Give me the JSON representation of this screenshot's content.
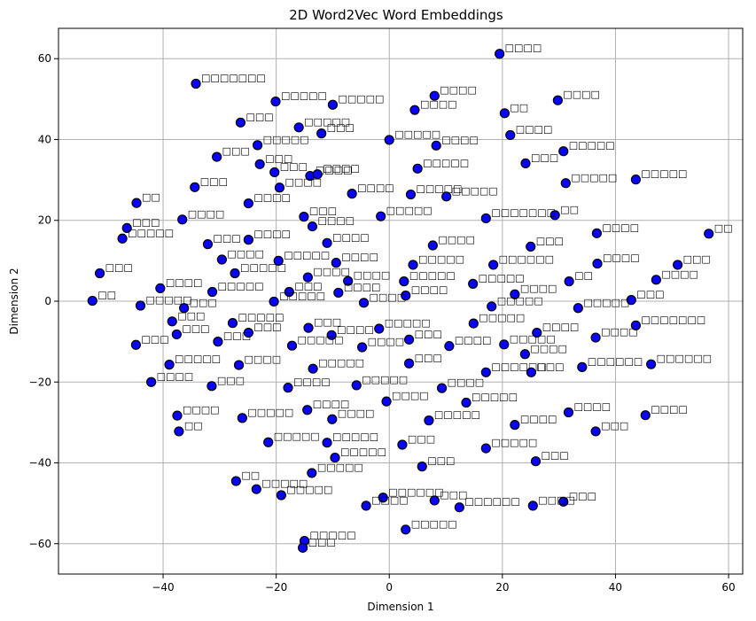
{
  "chart_data": {
    "type": "scatter",
    "title": "2D Word2Vec Word Embeddings",
    "xlabel": "Dimension 1",
    "ylabel": "Dimension 2",
    "xlim": [
      -58.5,
      62.5
    ],
    "ylim": [
      -67.5,
      67.5
    ],
    "xticks": [
      -40,
      -20,
      0,
      20,
      40,
      60
    ],
    "yticks": [
      -60,
      -40,
      -20,
      0,
      20,
      40,
      60
    ],
    "grid": true,
    "marker_color": "#0a00ff",
    "marker_edge_color": "#000000",
    "point_label_glyph": "□",
    "points": [
      [
        19.5,
        61.2,
        4
      ],
      [
        -34.2,
        53.8,
        7
      ],
      [
        8.0,
        50.8,
        4
      ],
      [
        29.8,
        49.7,
        4
      ],
      [
        -20.1,
        49.4,
        5
      ],
      [
        -10.0,
        48.6,
        5
      ],
      [
        4.5,
        47.3,
        4
      ],
      [
        20.4,
        46.5,
        2
      ],
      [
        -26.3,
        44.2,
        3
      ],
      [
        -16.0,
        43.0,
        5
      ],
      [
        -12.0,
        41.5,
        3
      ],
      [
        21.4,
        41.1,
        4
      ],
      [
        0.0,
        39.9,
        5
      ],
      [
        8.3,
        38.5,
        4
      ],
      [
        -23.3,
        38.6,
        5
      ],
      [
        30.8,
        37.1,
        5
      ],
      [
        -30.5,
        35.7,
        3
      ],
      [
        -22.9,
        33.9,
        3
      ],
      [
        24.1,
        34.1,
        3
      ],
      [
        5.0,
        32.8,
        5
      ],
      [
        -20.3,
        31.9,
        3
      ],
      [
        -14.0,
        31.0,
        4
      ],
      [
        -12.7,
        31.4,
        4
      ],
      [
        43.6,
        30.1,
        5
      ],
      [
        31.2,
        29.2,
        5
      ],
      [
        -34.4,
        28.2,
        3
      ],
      [
        -19.4,
        28.1,
        4
      ],
      [
        -6.6,
        26.6,
        4
      ],
      [
        3.8,
        26.4,
        5
      ],
      [
        10.1,
        25.9,
        5
      ],
      [
        -44.7,
        24.3,
        2
      ],
      [
        -24.9,
        24.2,
        4
      ],
      [
        29.3,
        21.3,
        2
      ],
      [
        -36.6,
        20.2,
        4
      ],
      [
        -15.1,
        20.9,
        3
      ],
      [
        -1.5,
        21.0,
        5
      ],
      [
        17.1,
        20.5,
        7
      ],
      [
        -46.4,
        18.1,
        3
      ],
      [
        -13.6,
        18.5,
        4
      ],
      [
        56.5,
        16.7,
        2
      ],
      [
        -47.2,
        15.5,
        5
      ],
      [
        -24.9,
        15.2,
        4
      ],
      [
        -11.0,
        14.4,
        4
      ],
      [
        7.7,
        13.8,
        4
      ],
      [
        25.0,
        13.5,
        3
      ],
      [
        36.7,
        16.8,
        4
      ],
      [
        -32.1,
        14.1,
        3
      ],
      [
        -29.6,
        10.3,
        4
      ],
      [
        -19.6,
        10.0,
        5
      ],
      [
        -9.4,
        9.5,
        4
      ],
      [
        4.2,
        9.0,
        5
      ],
      [
        18.4,
        9.0,
        6
      ],
      [
        36.8,
        9.3,
        4
      ],
      [
        51.0,
        9.0,
        3
      ],
      [
        -51.2,
        6.9,
        3
      ],
      [
        -27.3,
        6.9,
        5
      ],
      [
        -14.4,
        5.9,
        4
      ],
      [
        -7.3,
        5.0,
        4
      ],
      [
        2.6,
        4.9,
        5
      ],
      [
        14.8,
        4.3,
        5
      ],
      [
        31.8,
        4.9,
        2
      ],
      [
        47.2,
        5.3,
        4
      ],
      [
        -40.5,
        3.2,
        4
      ],
      [
        -31.3,
        2.3,
        5
      ],
      [
        -17.7,
        2.3,
        3
      ],
      [
        -9.0,
        2.1,
        4
      ],
      [
        2.9,
        1.4,
        4
      ],
      [
        22.2,
        1.7,
        4
      ],
      [
        42.8,
        0.3,
        3
      ],
      [
        -52.5,
        0.1,
        2
      ],
      [
        -44.0,
        -1.1,
        5
      ],
      [
        -36.3,
        -1.7,
        3
      ],
      [
        -20.4,
        -0.1,
        5
      ],
      [
        -4.5,
        -0.4,
        4
      ],
      [
        18.1,
        -1.3,
        5
      ],
      [
        33.4,
        -1.7,
        5
      ],
      [
        -38.4,
        -5.0,
        3
      ],
      [
        -27.7,
        -5.4,
        5
      ],
      [
        -14.3,
        -6.6,
        3
      ],
      [
        -1.8,
        -6.8,
        5
      ],
      [
        14.9,
        -5.5,
        5
      ],
      [
        26.1,
        -7.8,
        4
      ],
      [
        43.6,
        -6.0,
        7
      ],
      [
        -37.6,
        -8.2,
        3
      ],
      [
        -24.9,
        -7.8,
        3
      ],
      [
        -10.2,
        -8.4,
        4
      ],
      [
        3.5,
        -9.5,
        3
      ],
      [
        20.3,
        -10.7,
        5
      ],
      [
        36.5,
        -9.0,
        4
      ],
      [
        -44.8,
        -10.8,
        3
      ],
      [
        -30.3,
        -10.0,
        3
      ],
      [
        -17.2,
        -11.0,
        5
      ],
      [
        -4.8,
        -11.4,
        4
      ],
      [
        10.6,
        -11.1,
        4
      ],
      [
        24.0,
        -13.1,
        4
      ],
      [
        -38.9,
        -15.7,
        5
      ],
      [
        -26.6,
        -15.8,
        4
      ],
      [
        -13.5,
        -16.7,
        5
      ],
      [
        3.5,
        -15.4,
        3
      ],
      [
        17.1,
        -17.6,
        6
      ],
      [
        34.1,
        -16.3,
        6
      ],
      [
        46.3,
        -15.6,
        6
      ],
      [
        -42.1,
        -20.0,
        4
      ],
      [
        -31.4,
        -21.0,
        3
      ],
      [
        -17.9,
        -21.4,
        4
      ],
      [
        -5.8,
        -20.8,
        5
      ],
      [
        9.3,
        -21.5,
        4
      ],
      [
        25.1,
        -17.6,
        3
      ],
      [
        -14.5,
        -26.9,
        4
      ],
      [
        -0.5,
        -24.8,
        4
      ],
      [
        13.6,
        -25.1,
        5
      ],
      [
        31.7,
        -27.5,
        4
      ],
      [
        45.3,
        -28.2,
        4
      ],
      [
        -37.5,
        -28.3,
        4
      ],
      [
        -26.0,
        -28.9,
        5
      ],
      [
        -10.1,
        -29.2,
        4
      ],
      [
        7.0,
        -29.5,
        5
      ],
      [
        22.2,
        -30.6,
        4
      ],
      [
        36.5,
        -32.2,
        3
      ],
      [
        -37.2,
        -32.2,
        2
      ],
      [
        -21.4,
        -34.9,
        5
      ],
      [
        -11.0,
        -35.0,
        5
      ],
      [
        2.3,
        -35.5,
        3
      ],
      [
        17.1,
        -36.4,
        5
      ],
      [
        25.9,
        -39.6,
        3
      ],
      [
        -9.6,
        -38.7,
        5
      ],
      [
        5.8,
        -40.9,
        3
      ],
      [
        -27.1,
        -44.5,
        2
      ],
      [
        -13.7,
        -42.5,
        5
      ],
      [
        -19.1,
        -48.0,
        5
      ],
      [
        -1.1,
        -48.6,
        6
      ],
      [
        8.0,
        -49.3,
        3
      ],
      [
        12.4,
        -51.0,
        6
      ],
      [
        -23.5,
        -46.5,
        5
      ],
      [
        30.8,
        -49.6,
        3
      ],
      [
        -4.1,
        -50.6,
        4
      ],
      [
        2.9,
        -56.5,
        5
      ],
      [
        25.4,
        -50.6,
        4
      ],
      [
        -15.0,
        -59.3,
        5
      ],
      [
        -15.3,
        -61.0,
        3
      ]
    ]
  }
}
